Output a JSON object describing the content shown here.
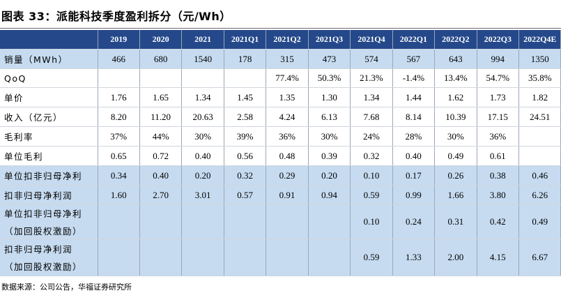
{
  "title": "图表 33：派能科技季度盈利拆分（元/Wh）",
  "table": {
    "columns": [
      "2019",
      "2020",
      "2021",
      "2021Q1",
      "2021Q2",
      "2021Q3",
      "2021Q4",
      "2022Q1",
      "2022Q2",
      "2022Q3",
      "2022Q4E"
    ],
    "rows": [
      {
        "label": [
          "销量（MWh）"
        ],
        "cells": [
          "466",
          "680",
          "1540",
          "178",
          "315",
          "473",
          "574",
          "567",
          "643",
          "994",
          "1350"
        ]
      },
      {
        "label": [
          "QoQ"
        ],
        "cells": [
          null,
          null,
          null,
          null,
          "77.4%",
          "50.3%",
          "21.3%",
          "-1.4%",
          "13.4%",
          "54.7%",
          "35.8%"
        ]
      },
      {
        "label": [
          "单价"
        ],
        "cells": [
          "1.76",
          "1.65",
          "1.34",
          "1.45",
          "1.35",
          "1.30",
          "1.34",
          "1.44",
          "1.62",
          "1.73",
          "1.82"
        ]
      },
      {
        "label": [
          "收入（亿元）"
        ],
        "cells": [
          "8.20",
          "11.20",
          "20.63",
          "2.58",
          "4.24",
          "6.13",
          "7.68",
          "8.14",
          "10.39",
          "17.15",
          "24.51"
        ]
      },
      {
        "label": [
          "毛利率"
        ],
        "cells": [
          "37%",
          "44%",
          "30%",
          "39%",
          "36%",
          "30%",
          "24%",
          "28%",
          "30%",
          "36%",
          null
        ]
      },
      {
        "label": [
          "单位毛利"
        ],
        "cells": [
          "0.65",
          "0.72",
          "0.40",
          "0.56",
          "0.48",
          "0.39",
          "0.32",
          "0.40",
          "0.49",
          "0.61",
          null
        ]
      },
      {
        "label": [
          "单位扣非归母净利"
        ],
        "cells": [
          "0.34",
          "0.40",
          "0.20",
          "0.32",
          "0.29",
          "0.20",
          "0.10",
          "0.17",
          "0.26",
          "0.38",
          "0.46"
        ]
      },
      {
        "label": [
          "扣非归母净利润"
        ],
        "cells": [
          "1.60",
          "2.70",
          "3.01",
          "0.57",
          "0.91",
          "0.94",
          "0.59",
          "0.99",
          "1.66",
          "3.80",
          "6.26"
        ]
      },
      {
        "label": [
          "单位扣非归母净利",
          "（加回股权激励）"
        ],
        "cells": [
          null,
          null,
          null,
          null,
          null,
          null,
          "0.10",
          "0.24",
          "0.31",
          "0.42",
          "0.49"
        ]
      },
      {
        "label": [
          "扣非归母净利润",
          "（加回股权激励）"
        ],
        "cells": [
          null,
          null,
          null,
          null,
          null,
          null,
          "0.59",
          "1.33",
          "2.00",
          "4.15",
          "6.67"
        ]
      }
    ]
  },
  "source": "数据来源：公司公告，华福证券研究所"
}
